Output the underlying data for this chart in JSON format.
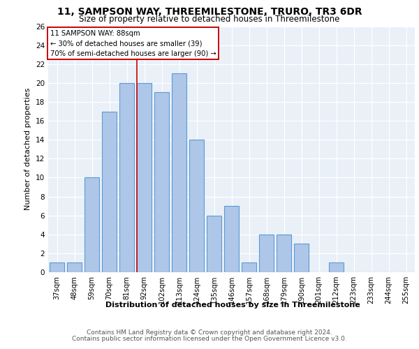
{
  "title": "11, SAMPSON WAY, THREEMILESTONE, TRURO, TR3 6DR",
  "subtitle": "Size of property relative to detached houses in Threemilestone",
  "xlabel": "Distribution of detached houses by size in Threemilestone",
  "ylabel": "Number of detached properties",
  "categories": [
    "37sqm",
    "48sqm",
    "59sqm",
    "70sqm",
    "81sqm",
    "92sqm",
    "102sqm",
    "113sqm",
    "124sqm",
    "135sqm",
    "146sqm",
    "157sqm",
    "168sqm",
    "179sqm",
    "190sqm",
    "201sqm",
    "212sqm",
    "223sqm",
    "233sqm",
    "244sqm",
    "255sqm"
  ],
  "values": [
    1,
    1,
    10,
    17,
    20,
    20,
    19,
    21,
    14,
    6,
    7,
    1,
    4,
    4,
    3,
    0,
    1,
    0,
    0,
    0,
    0
  ],
  "bar_color": "#aec6e8",
  "bar_edge_color": "#5b9bd5",
  "marker_bin_index": 5,
  "marker_color": "#cc0000",
  "ylim": [
    0,
    26
  ],
  "yticks": [
    0,
    2,
    4,
    6,
    8,
    10,
    12,
    14,
    16,
    18,
    20,
    22,
    24,
    26
  ],
  "annotation_line1": "11 SAMPSON WAY: 88sqm",
  "annotation_line2": "← 30% of detached houses are smaller (39)",
  "annotation_line3": "70% of semi-detached houses are larger (90) →",
  "footer_line1": "Contains HM Land Registry data © Crown copyright and database right 2024.",
  "footer_line2": "Contains public sector information licensed under the Open Government Licence v3.0.",
  "plot_bg_color": "#eaf0f8"
}
